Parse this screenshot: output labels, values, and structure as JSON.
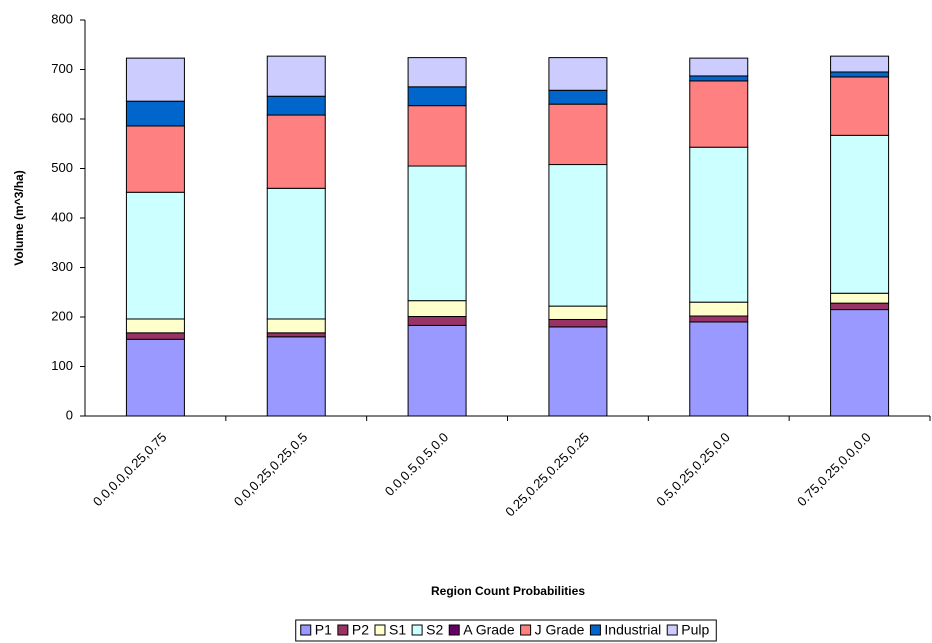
{
  "chart_data": {
    "type": "stacked_bar",
    "x_label": "Region Count Probabilities",
    "y_label": "Volume (m^3/ha)",
    "categories": [
      "0.0,0.0,0.25,0.75",
      "0.0,0.25,0.25,0.5",
      "0.0,0.5,0.5,0.0",
      "0.25,0.25,0.25,0.25",
      "0.5,0.25,0.25,0.0",
      "0.75,0.25,0.0,0.0"
    ],
    "series": [
      {
        "name": "P1",
        "color": "#9999ff",
        "values": [
          155,
          160,
          183,
          180,
          190,
          215
        ]
      },
      {
        "name": "P2",
        "color": "#993366",
        "values": [
          13,
          8,
          18,
          15,
          12,
          13
        ]
      },
      {
        "name": "S1",
        "color": "#ffffcc",
        "values": [
          28,
          28,
          32,
          27,
          28,
          20
        ]
      },
      {
        "name": "S2",
        "color": "#ccffff",
        "values": [
          256,
          264,
          272,
          286,
          313,
          319
        ]
      },
      {
        "name": "A Grade",
        "color": "#660066",
        "values": [
          0,
          0,
          0,
          0,
          0,
          0
        ]
      },
      {
        "name": "J Grade",
        "color": "#ff8080",
        "values": [
          134,
          148,
          122,
          122,
          134,
          118
        ]
      },
      {
        "name": "Industrial",
        "color": "#0066cc",
        "values": [
          50,
          38,
          38,
          28,
          10,
          10
        ]
      },
      {
        "name": "Pulp",
        "color": "#ccccff",
        "values": [
          87,
          81,
          59,
          66,
          36,
          32
        ]
      }
    ],
    "ylim": [
      0,
      800
    ],
    "yticks": [
      0,
      100,
      200,
      300,
      400,
      500,
      600,
      700,
      800
    ],
    "legend": "bottom"
  }
}
